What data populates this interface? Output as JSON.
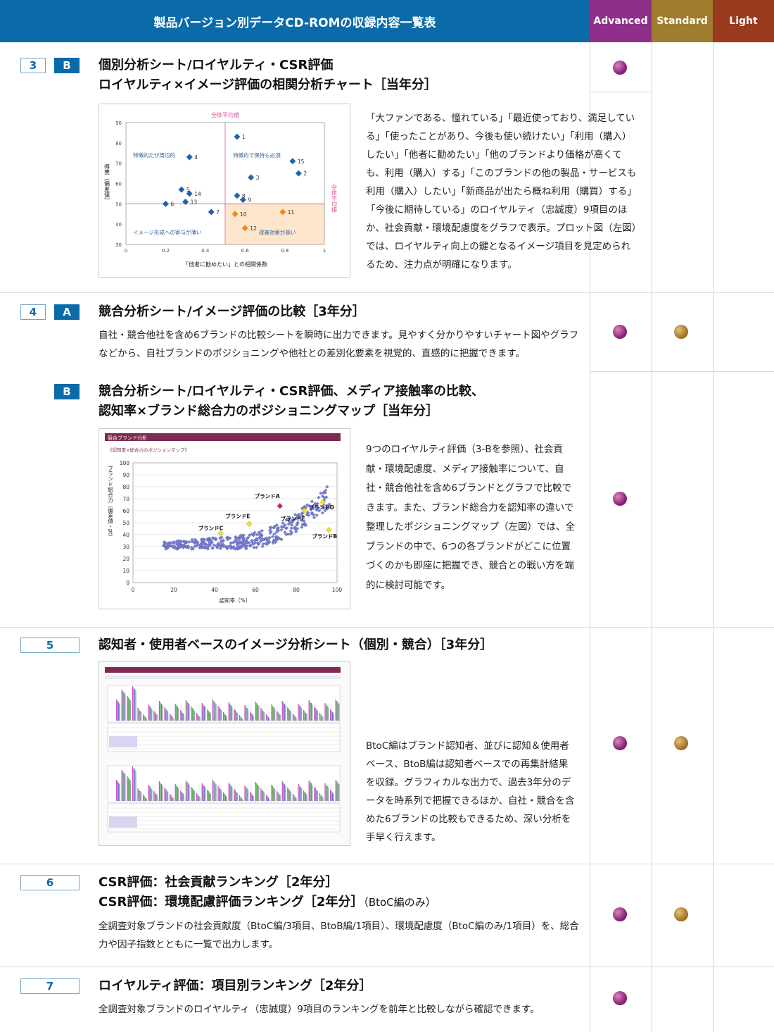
{
  "header": {
    "title": "製品バージョン別データCD-ROMの収録内容一覧表",
    "col_advanced": "Advanced",
    "col_standard": "Standard",
    "col_light": "Light",
    "colors": {
      "blue": "#0b6aa8",
      "advanced": "#8e2f8a",
      "standard": "#a07c2e",
      "light": "#9a3a1f"
    }
  },
  "rows": {
    "r3": {
      "num": "3",
      "letter": "B",
      "title1": "個別分析シート/ロイヤルティ・CSR評価",
      "title2": "ロイヤルティ×イメージ評価の相関分析チャート［当年分］",
      "desc": "「大ファンである、憧れている」「最近使っており、満足している」「使ったことがあり、今後も使い続けたい」「利用（購入）したい」「他者に勧めたい」「他のブランドより価格が高くても、利用（購入）する」「このブランドの他の製品・サービスも利用（購入）したい」「新商品が出たら概ね利用（購買）する」「今後に期待している」のロイヤルティ（忠誠度）9項目のほか、社会貢献・環境配慮度をグラフで表示。プロット図（左図）では、ロイヤルティ向上の鍵となるイメージ項目を見定められるため、注力点が明確になります。"
    },
    "r4a": {
      "num": "4",
      "letter": "A",
      "title1": "競合分析シート/イメージ評価の比較［3年分］",
      "desc": "自社・競合他社を含め6ブランドの比較シートを瞬時に出力できます。見やすく分かりやすいチャート図やグラフなどから、自社ブランドのポジショニングや他社との差別化要素を視覚的、直感的に把握できます。"
    },
    "r4b": {
      "letter": "B",
      "title1": "競合分析シート/ロイヤルティ・CSR評価、メディア接触率の比較、",
      "title2": "認知率×ブランド総合力のポジショニングマップ［当年分］",
      "desc": "9つのロイヤルティ評価（3-Bを参照）、社会貢献・環境配慮度、メディア接触率について、自社・競合他社を含め6ブランドとグラフで比較できます。また、ブランド総合力を認知率の違いで整理したポジショニングマップ（左図）では、全ブランドの中で、6つの各ブランドがどこに位置づくのかも即座に把握でき、競合との戦い方を端的に検討可能です。"
    },
    "r5": {
      "num": "5",
      "title1": "認知者・使用者ベースのイメージ分析シート（個別・競合）［3年分］",
      "desc": "BtoC編はブランド認知者、並びに認知＆使用者ベース、BtoB編は認知者ベースでの再集計結果を収録。グラフィカルな出力で、過去3年分のデータを時系列で把握できるほか、自社・競合を含めた6ブランドの比較もできるため、深い分析を手早く行えます。"
    },
    "r6": {
      "num": "6",
      "title1": "CSR評価：社会貢献ランキング［2年分］",
      "title2": "CSR評価：環境配慮評価ランキング［2年分］",
      "note": "（BtoC編のみ）",
      "desc": "全調査対象ブランドの社会貢献度（BtoC編/3項目、BtoB編/1項目）、環境配慮度（BtoC編のみ/1項目）を、総合力や因子指数とともに一覧で出力します。"
    },
    "r7": {
      "num": "7",
      "title1": "ロイヤルティ評価：項目別ランキング［2年分］",
      "desc": "全調査対象ブランドのロイヤルティ（忠誠度）9項目のランキングを前年と比較しながら確認できます。"
    }
  },
  "chart_data": [
    {
      "type": "scatter",
      "xlabel": "「他者に勧めたい」との相関係数",
      "ylabel": "得票（偏差値）",
      "xlim": [
        0,
        1
      ],
      "ylim": [
        30,
        90
      ],
      "x_ticks": [
        "0",
        "0.2",
        "0.4",
        "0.6",
        "0.8",
        "1"
      ],
      "y_ticks": [
        "30",
        "40",
        "50",
        "60",
        "70",
        "80",
        "90"
      ],
      "ref_x": 0.5,
      "ref_y": 50,
      "ref_x_label": "全体平均値",
      "ref_y_label": "全体平均値",
      "quadrants": [
        "特徴的だが周辺的",
        "特徴的で保持も必須",
        "イメージ形成への寄与が薄い",
        "改善効果が高い"
      ],
      "points": [
        {
          "label": "1",
          "x": 0.56,
          "y": 83,
          "c": "blue"
        },
        {
          "label": "2",
          "x": 0.87,
          "y": 65,
          "c": "blue"
        },
        {
          "label": "3",
          "x": 0.63,
          "y": 63,
          "c": "blue"
        },
        {
          "label": "4",
          "x": 0.32,
          "y": 73,
          "c": "blue"
        },
        {
          "label": "5",
          "x": 0.28,
          "y": 57,
          "c": "blue"
        },
        {
          "label": "6",
          "x": 0.2,
          "y": 50,
          "c": "blue"
        },
        {
          "label": "7",
          "x": 0.43,
          "y": 46,
          "c": "blue"
        },
        {
          "label": "8",
          "x": 0.56,
          "y": 54,
          "c": "blue"
        },
        {
          "label": "9",
          "x": 0.59,
          "y": 52,
          "c": "blue"
        },
        {
          "label": "10",
          "x": 0.55,
          "y": 45,
          "c": "orange"
        },
        {
          "label": "11",
          "x": 0.79,
          "y": 46,
          "c": "orange"
        },
        {
          "label": "12",
          "x": 0.6,
          "y": 38,
          "c": "orange"
        },
        {
          "label": "13",
          "x": 0.3,
          "y": 51,
          "c": "blue"
        },
        {
          "label": "14",
          "x": 0.32,
          "y": 55,
          "c": "blue"
        },
        {
          "label": "15",
          "x": 0.84,
          "y": 71,
          "c": "blue"
        }
      ]
    },
    {
      "type": "scatter",
      "title": "競合ブランド分析",
      "subtitle": "《認知率×総合力のポジションマップ》",
      "xlabel": "認知率（%）",
      "ylabel": "ブランド総合力（偏差値・pt）",
      "xlim": [
        0,
        100
      ],
      "ylim": [
        0,
        100
      ],
      "x_ticks": [
        "0",
        "20",
        "40",
        "60",
        "80",
        "100"
      ],
      "y_ticks": [
        "0",
        "10",
        "20",
        "30",
        "40",
        "50",
        "60",
        "70",
        "80",
        "90",
        "100"
      ],
      "brands": [
        {
          "name": "ブランドA",
          "x": 72,
          "y": 64,
          "c": "#d4197b"
        },
        {
          "name": "ブランドB",
          "x": 96,
          "y": 44,
          "c": "#f2e21a"
        },
        {
          "name": "ブランドC",
          "x": 43,
          "y": 41,
          "c": "#f2e21a"
        },
        {
          "name": "ブランドD",
          "x": 93,
          "y": 67,
          "c": "#f2e21a"
        },
        {
          "name": "ブランドE",
          "x": 57,
          "y": 49,
          "c": "#f2e21a"
        },
        {
          "name": "ブランドF",
          "x": 84,
          "y": 60,
          "c": "#f2e21a"
        }
      ]
    }
  ]
}
